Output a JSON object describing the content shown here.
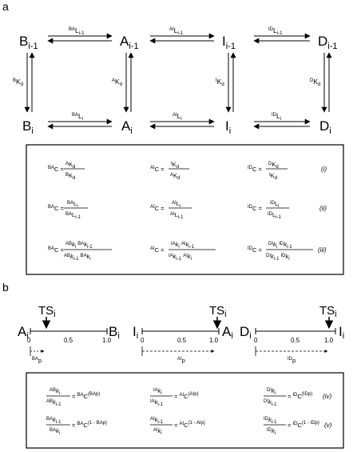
{
  "panels": {
    "a": "a",
    "b": "b"
  },
  "nodes": {
    "B_top": {
      "base": "B",
      "sub": "i-1"
    },
    "A_top": {
      "base": "A",
      "sub": "i-1"
    },
    "I_top": {
      "base": "I",
      "sub": "i-1"
    },
    "D_top": {
      "base": "D",
      "sub": "i-1"
    },
    "B_bot": {
      "base": "B",
      "sub": "i"
    },
    "A_bot": {
      "base": "A",
      "sub": "i"
    },
    "I_bot": {
      "base": "I",
      "sub": "i"
    },
    "D_bot": {
      "base": "D",
      "sub": "i"
    }
  },
  "rates": {
    "BA_top": {
      "sup": "BA",
      "base": "L",
      "sub": "i-1"
    },
    "AI_top": {
      "sup": "AI",
      "base": "L",
      "sub": "i-1"
    },
    "ID_top": {
      "sup": "ID",
      "base": "L",
      "sub": "i-1"
    },
    "BA_bot": {
      "sup": "BA",
      "base": "L",
      "sub": "i"
    },
    "AI_bot": {
      "sup": "AI",
      "base": "L",
      "sub": "i"
    },
    "ID_bot": {
      "sup": "ID",
      "base": "L",
      "sub": "i"
    },
    "BK": {
      "sup": "B",
      "base": "K",
      "sub": "d"
    },
    "AK": {
      "sup": "A",
      "base": "K",
      "sub": "d"
    },
    "IK": {
      "sup": "I",
      "base": "K",
      "sub": "d"
    },
    "DK": {
      "sup": "D",
      "base": "K",
      "sub": "d"
    }
  },
  "eq_labels": {
    "i": "(i)",
    "ii": "(ii)",
    "iii": "(iii)",
    "iv": "(iv)",
    "v": "(v)"
  },
  "c_lhs": {
    "BA": {
      "sup": "BA",
      "base": "C"
    },
    "AI": {
      "sup": "AI",
      "base": "C"
    },
    "ID": {
      "sup": "ID",
      "base": "C"
    }
  },
  "eq_i": {
    "BA": {
      "num": {
        "sup": "A",
        "base": "K",
        "sub": "d"
      },
      "den": {
        "sup": "B",
        "base": "K",
        "sub": "d"
      }
    },
    "AI": {
      "num": {
        "sup": "I",
        "base": "K",
        "sub": "d"
      },
      "den": {
        "sup": "A",
        "base": "K",
        "sub": "d"
      }
    },
    "ID": {
      "num": {
        "sup": "D",
        "base": "K",
        "sub": "d"
      },
      "den": {
        "sup": "I",
        "base": "K",
        "sub": "d"
      }
    }
  },
  "eq_ii": {
    "BA": {
      "num": {
        "sup": "BA",
        "base": "L",
        "sub": "i"
      },
      "den": {
        "sup": "BA",
        "base": "L",
        "sub": "i-1"
      }
    },
    "AI": {
      "num": {
        "sup": "AI",
        "base": "L",
        "sub": "i"
      },
      "den": {
        "sup": "AI",
        "base": "L",
        "sub": "i-1"
      }
    },
    "ID": {
      "num": {
        "sup": "ID",
        "base": "L",
        "sub": "i"
      },
      "den": {
        "sup": "ID",
        "base": "L",
        "sub": "i-1"
      }
    }
  },
  "eq_iii": {
    "BA": {
      "num": [
        {
          "sup": "AB",
          "base": "k",
          "sub": "i"
        },
        {
          "sup": "BA",
          "base": "k",
          "sub": "i-1"
        }
      ],
      "den": [
        {
          "sup": "AB",
          "base": "k",
          "sub": "i-1"
        },
        {
          "sup": "BA",
          "base": "k",
          "sub": "i"
        }
      ]
    },
    "AI": {
      "num": [
        {
          "sup": "IA",
          "base": "k",
          "sub": "i"
        },
        {
          "sup": "AI",
          "base": "k",
          "sub": "i-1"
        }
      ],
      "den": [
        {
          "sup": "IA",
          "base": "k",
          "sub": "i-1"
        },
        {
          "sup": "AI",
          "base": "k",
          "sub": "i"
        }
      ]
    },
    "ID": {
      "num": [
        {
          "sup": "DI",
          "base": "k",
          "sub": "i"
        },
        {
          "sup": "ID",
          "base": "k",
          "sub": "i-1"
        }
      ],
      "den": [
        {
          "sup": "DI",
          "base": "k",
          "sub": "i-1"
        },
        {
          "sup": "ID",
          "base": "k",
          "sub": "i"
        }
      ]
    }
  },
  "eq_iv": {
    "BA": {
      "num": {
        "sup": "AB",
        "base": "k",
        "sub": "i"
      },
      "den": {
        "sup": "AB",
        "base": "k",
        "sub": "i-1"
      },
      "rhs_sup": "BA",
      "rhs_exp": "(BAp)"
    },
    "AI": {
      "num": {
        "sup": "IA",
        "base": "k",
        "sub": "i"
      },
      "den": {
        "sup": "IA",
        "base": "k",
        "sub": "i-1"
      },
      "rhs_sup": "AI",
      "rhs_exp": "(AIp)"
    },
    "ID": {
      "num": {
        "sup": "DI",
        "base": "k",
        "sub": "i"
      },
      "den": {
        "sup": "DI",
        "base": "k",
        "sub": "i-1"
      },
      "rhs_sup": "ID",
      "rhs_exp": "(IDp)"
    }
  },
  "eq_v": {
    "BA": {
      "num": {
        "sup": "BA",
        "base": "k",
        "sub": "i-1"
      },
      "den": {
        "sup": "BA",
        "base": "k",
        "sub": "i"
      },
      "rhs_sup": "BA",
      "rhs_exp": "(1 - BAp)"
    },
    "AI": {
      "num": {
        "sup": "AI",
        "base": "k",
        "sub": "i-1"
      },
      "den": {
        "sup": "AI",
        "base": "k",
        "sub": "i"
      },
      "rhs_sup": "AI",
      "rhs_exp": "(1 - AIp)"
    },
    "ID": {
      "num": {
        "sup": "ID",
        "base": "k",
        "sub": "i-1"
      },
      "den": {
        "sup": "ID",
        "base": "k",
        "sub": "i"
      },
      "rhs_sup": "ID",
      "rhs_exp": "(1 - IDp)"
    }
  },
  "profiles": [
    {
      "left": {
        "base": "A",
        "sub": "i"
      },
      "right": {
        "base": "B",
        "sub": "i"
      },
      "ts": {
        "base": "TS",
        "sub": "i"
      },
      "ts_pos": 0.2,
      "ticks": [
        "0",
        "0.5",
        "1.0"
      ],
      "p_label": {
        "sup": "BA",
        "base": "p"
      }
    },
    {
      "left": {
        "base": "I",
        "sub": "i"
      },
      "right": {
        "base": "A",
        "sub": "i"
      },
      "ts": {
        "base": "TS",
        "sub": "i"
      },
      "ts_pos": 0.92,
      "ticks": [
        "0",
        "0.5",
        "1.0"
      ],
      "p_label": {
        "sup": "AI",
        "base": "p"
      }
    },
    {
      "left": {
        "base": "D",
        "sub": "i"
      },
      "right": {
        "base": "I",
        "sub": "i"
      },
      "ts": {
        "base": "TS",
        "sub": "i"
      },
      "ts_pos": 0.9,
      "ticks": [
        "0",
        "0.5",
        "1.0"
      ],
      "p_label": {
        "sup": "ID",
        "base": "p"
      }
    }
  ]
}
